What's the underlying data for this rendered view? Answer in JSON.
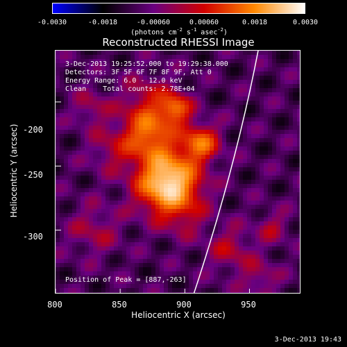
{
  "colorbar": {
    "ticks": [
      "-0.0030",
      "-0.0018",
      "-0.00060",
      "0.00060",
      "0.0018",
      "0.0030"
    ],
    "unit_main": "(photons cm",
    "unit_sup1": "-2",
    "unit_mid": " s",
    "unit_sup2": "-1",
    "unit_mid2": " asec",
    "unit_sup3": "-2",
    "unit_end": ")",
    "colors": [
      "#0000ff",
      "#000000",
      "#6a0080",
      "#d00000",
      "#ff8800",
      "#ffffff"
    ]
  },
  "title": "Reconstructed RHESSI Image",
  "info": {
    "time_range": "3-Dec-2013 19:25:52.000 to 19:29:38.000",
    "detectors": "Detectors: 3F 5F 6F 7F 8F 9F, Att 0",
    "energy": "Energy Range: 6.0 - 12.0 keV",
    "clean": "Clean    Total counts: 2.78E+04",
    "peak": "Position of Peak = [887,-263]"
  },
  "axes": {
    "xlabel": "Heliocentric X (arcsec)",
    "ylabel": "Heliocentric Y (arcsec)",
    "xticks": [
      "800",
      "850",
      "900",
      "950"
    ],
    "yticks": [
      "-200",
      "-250",
      "-300"
    ]
  },
  "chart_data": {
    "type": "heatmap",
    "title": "Reconstructed RHESSI Image",
    "xlabel": "Heliocentric X (arcsec)",
    "ylabel": "Heliocentric Y (arcsec)",
    "xlim": [
      800,
      990
    ],
    "ylim": [
      -350,
      -160
    ],
    "xticks": [
      800,
      850,
      900,
      950
    ],
    "yticks": [
      -200,
      -250,
      -300
    ],
    "colorbar_range": [
      -0.003,
      0.003
    ],
    "peak": {
      "x": 887,
      "y": -263
    }
  },
  "timestamp": "3-Dec-2013 19:43"
}
